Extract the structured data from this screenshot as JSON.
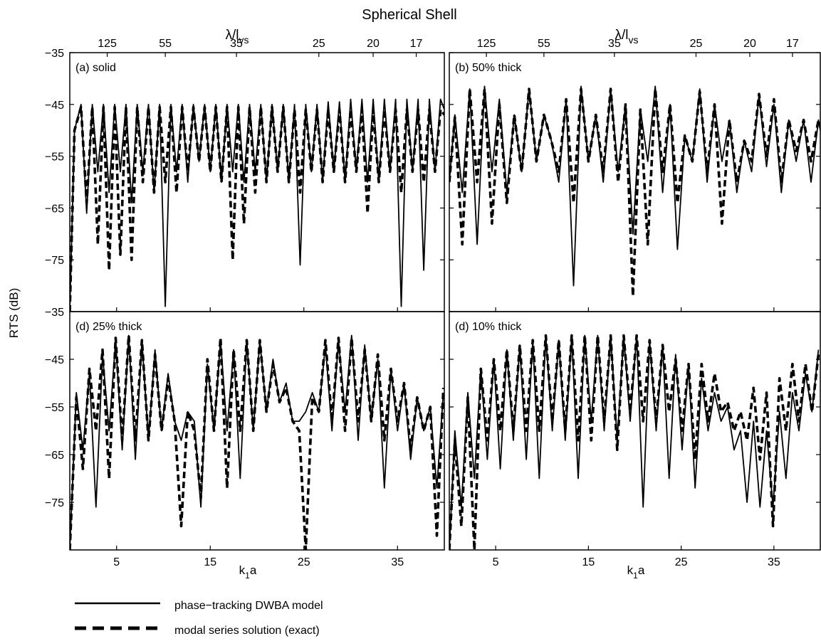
{
  "figure": {
    "title": "Spherical Shell",
    "ylabel": "RTS (dB)",
    "xlabel_main": "k",
    "xlabel_sub": "1",
    "xlabel_tail": "a",
    "toplabel_main": "λ/l",
    "toplabel_sub": "vs",
    "legend": {
      "solid": "phase−tracking DWBA model",
      "dashed": "modal series solution (exact)"
    }
  },
  "chart_data": [
    {
      "type": "line",
      "panel_label": "(a) solid",
      "x_range": [
        0,
        40
      ],
      "ylim": [
        -85,
        -35
      ],
      "yticks": [
        -35,
        -45,
        -55,
        -65,
        -75
      ],
      "xticks": [
        5,
        15,
        25,
        35
      ],
      "top_ticks": [
        "125",
        "55",
        "35",
        "25",
        "20",
        "17"
      ],
      "series": [
        {
          "name": "phase−tracking DWBA model",
          "style": "solid",
          "x": [
            0,
            0.5,
            1.2,
            1.8,
            2.4,
            3,
            3.6,
            4.2,
            4.8,
            5.4,
            6,
            6.6,
            7.2,
            7.8,
            8.4,
            9,
            9.6,
            10.2,
            10.8,
            11.4,
            12,
            12.6,
            13.2,
            13.8,
            14.4,
            15,
            15.6,
            16.2,
            16.8,
            17.4,
            18,
            18.6,
            19.2,
            19.8,
            20.4,
            21,
            21.6,
            22.2,
            22.8,
            23.4,
            24,
            24.6,
            25.2,
            25.8,
            26.4,
            27,
            27.6,
            28.2,
            28.8,
            29.4,
            30,
            30.6,
            31.2,
            31.8,
            32.4,
            33,
            33.6,
            34.2,
            34.8,
            35.4,
            36,
            36.6,
            37.2,
            37.8,
            38.4,
            39,
            39.6,
            40
          ],
          "y": [
            -85,
            -50,
            -45,
            -66,
            -45,
            -58,
            -45,
            -62,
            -45,
            -58,
            -45,
            -64,
            -45,
            -58,
            -45,
            -62,
            -45,
            -84,
            -45,
            -58,
            -45,
            -60,
            -45,
            -56,
            -45,
            -58,
            -45,
            -60,
            -45,
            -58,
            -45,
            -60,
            -45,
            -58,
            -45,
            -60,
            -45,
            -58,
            -45,
            -60,
            -45,
            -76,
            -45,
            -58,
            -45,
            -60,
            -44.5,
            -58,
            -44.5,
            -60,
            -44,
            -58,
            -44,
            -60,
            -44,
            -60,
            -44,
            -58,
            -44,
            -84,
            -44,
            -58,
            -44,
            -77,
            -44,
            -58,
            -44,
            -46
          ]
        },
        {
          "name": "modal series solution (exact)",
          "style": "dashed",
          "x": [
            0,
            0.5,
            1.2,
            1.8,
            2.4,
            3,
            3.6,
            4.2,
            4.8,
            5.4,
            6,
            6.6,
            7.2,
            7.8,
            8.4,
            9,
            9.6,
            10.2,
            10.8,
            11.4,
            12,
            12.6,
            13.2,
            13.8,
            14.4,
            15,
            15.6,
            16.2,
            16.8,
            17.4,
            18,
            18.6,
            19.2,
            19.8,
            20.4,
            21,
            21.6,
            22.2,
            22.8,
            23.4,
            24,
            24.6,
            25.2,
            25.8,
            26.4,
            27,
            27.6,
            28.2,
            28.8,
            29.4,
            30,
            30.6,
            31.2,
            31.8,
            32.4,
            33,
            33.6,
            34.2,
            34.8,
            35.4,
            36,
            36.6,
            37.2,
            37.8,
            38.4,
            39,
            39.6,
            40
          ],
          "y": [
            -85,
            -50,
            -45.5,
            -64,
            -45.5,
            -72,
            -45.5,
            -77,
            -45.5,
            -74,
            -45.5,
            -75,
            -45.5,
            -60,
            -45.5,
            -62,
            -45.5,
            -60,
            -45.5,
            -62,
            -45.5,
            -58,
            -45.5,
            -56,
            -45.5,
            -58,
            -45.5,
            -60,
            -45.5,
            -75,
            -45.5,
            -68,
            -45.5,
            -62,
            -45.5,
            -60,
            -45.5,
            -58,
            -45.5,
            -60,
            -46,
            -62,
            -46,
            -58,
            -46,
            -60,
            -46,
            -58,
            -46,
            -60,
            -46,
            -58,
            -46,
            -66,
            -46,
            -60,
            -46,
            -58,
            -46,
            -62,
            -46,
            -58,
            -46,
            -60,
            -46,
            -58,
            -46,
            -47
          ]
        }
      ]
    },
    {
      "type": "line",
      "panel_label": "(b) 50% thick",
      "x_range": [
        0,
        40
      ],
      "ylim": [
        -85,
        -35
      ],
      "yticks": [
        -35,
        -45,
        -55,
        -65,
        -75
      ],
      "xticks": [
        5,
        15,
        25,
        35
      ],
      "top_ticks": [
        "125",
        "55",
        "35",
        "25",
        "20",
        "17"
      ],
      "series": [
        {
          "name": "phase−tracking DWBA model",
          "style": "solid",
          "x": [
            0,
            0.6,
            1.4,
            2.2,
            3,
            3.8,
            4.6,
            5.4,
            6.2,
            7,
            7.8,
            8.6,
            9.4,
            10.2,
            11,
            11.8,
            12.6,
            13.4,
            14.2,
            15,
            15.8,
            16.6,
            17.4,
            18.2,
            19,
            19.8,
            20.6,
            21.4,
            22.2,
            23,
            23.8,
            24.6,
            25.4,
            26.2,
            27,
            27.8,
            28.6,
            29.4,
            30.2,
            31,
            31.8,
            32.6,
            33.4,
            34.2,
            35,
            35.8,
            36.6,
            37.4,
            38.2,
            39,
            39.8,
            40
          ],
          "y": [
            -60,
            -47,
            -62,
            -42,
            -72,
            -41.5,
            -58,
            -44,
            -62,
            -47,
            -58,
            -42,
            -56,
            -47,
            -52,
            -60,
            -44,
            -80,
            -41.5,
            -56,
            -47,
            -60,
            -42,
            -58,
            -45,
            -70,
            -46,
            -56,
            -41.5,
            -62,
            -45,
            -73,
            -51,
            -56,
            -42,
            -60,
            -45,
            -56,
            -48,
            -62,
            -52,
            -58,
            -43,
            -57,
            -45,
            -62,
            -48,
            -56,
            -48,
            -60,
            -48,
            -50
          ]
        },
        {
          "name": "modal series solution (exact)",
          "style": "dashed",
          "x": [
            0,
            0.6,
            1.4,
            2.2,
            3,
            3.8,
            4.6,
            5.4,
            6.2,
            7,
            7.8,
            8.6,
            9.4,
            10.2,
            11,
            11.8,
            12.6,
            13.4,
            14.2,
            15,
            15.8,
            16.6,
            17.4,
            18.2,
            19,
            19.8,
            20.6,
            21.4,
            22.2,
            23,
            23.8,
            24.6,
            25.4,
            26.2,
            27,
            27.8,
            28.6,
            29.4,
            30.2,
            31,
            31.8,
            32.6,
            33.4,
            34.2,
            35,
            35.8,
            36.6,
            37.4,
            38.2,
            39,
            39.8,
            40
          ],
          "y": [
            -60,
            -47.5,
            -72,
            -42,
            -60,
            -42,
            -68,
            -45,
            -64,
            -47,
            -58,
            -42,
            -56,
            -47,
            -52,
            -58,
            -44,
            -64,
            -42,
            -56,
            -47,
            -58,
            -42,
            -60,
            -45,
            -82,
            -46,
            -72,
            -42,
            -58,
            -45,
            -64,
            -51,
            -56,
            -42.5,
            -58,
            -45,
            -68,
            -48,
            -60,
            -52,
            -56,
            -43,
            -55,
            -44,
            -60,
            -48,
            -54,
            -48,
            -56,
            -48,
            -49
          ]
        }
      ]
    },
    {
      "type": "line",
      "panel_label": "(d) 25% thick",
      "x_range": [
        0,
        40
      ],
      "ylim": [
        -85,
        -35
      ],
      "yticks": [
        -35,
        -45,
        -55,
        -65,
        -75
      ],
      "xticks": [
        5,
        15,
        25,
        35
      ],
      "top_ticks": [],
      "series": [
        {
          "name": "phase−tracking DWBA model",
          "style": "solid",
          "x": [
            0,
            0.7,
            1.4,
            2.1,
            2.8,
            3.5,
            4.2,
            4.9,
            5.6,
            6.3,
            7,
            7.7,
            8.4,
            9.1,
            9.8,
            10.5,
            11.2,
            11.9,
            12.6,
            13.3,
            14,
            14.7,
            15.4,
            16.1,
            16.8,
            17.5,
            18.2,
            18.9,
            19.6,
            20.3,
            21,
            21.7,
            22.4,
            23.1,
            23.8,
            24.5,
            25.2,
            25.9,
            26.6,
            27.3,
            28,
            28.7,
            29.4,
            30.1,
            30.8,
            31.5,
            32.2,
            32.9,
            33.6,
            34.3,
            35,
            35.7,
            36.4,
            37.1,
            37.8,
            38.5,
            39.2,
            39.9
          ],
          "y": [
            -85,
            -52,
            -64,
            -48,
            -76,
            -44,
            -60,
            -41,
            -64,
            -40,
            -66,
            -41,
            -62,
            -43,
            -60,
            -48,
            -58,
            -62,
            -56,
            -58,
            -76,
            -46,
            -60,
            -41,
            -60,
            -43,
            -70,
            -41,
            -60,
            -41,
            -56,
            -45,
            -54,
            -50,
            -58,
            -58,
            -56,
            -52,
            -56,
            -42,
            -60,
            -41,
            -56,
            -40,
            -62,
            -42,
            -58,
            -45,
            -72,
            -47,
            -60,
            -50,
            -66,
            -53,
            -60,
            -55,
            -72,
            -52
          ]
        },
        {
          "name": "modal series solution (exact)",
          "style": "dashed",
          "x": [
            0,
            0.7,
            1.4,
            2.1,
            2.8,
            3.5,
            4.2,
            4.9,
            5.6,
            6.3,
            7,
            7.7,
            8.4,
            9.1,
            9.8,
            10.5,
            11.2,
            11.9,
            12.6,
            13.3,
            14,
            14.7,
            15.4,
            16.1,
            16.8,
            17.5,
            18.2,
            18.9,
            19.6,
            20.3,
            21,
            21.7,
            22.4,
            23.1,
            23.8,
            24.5,
            25.2,
            25.9,
            26.6,
            27.3,
            28,
            28.7,
            29.4,
            30.1,
            30.8,
            31.5,
            32.2,
            32.9,
            33.6,
            34.3,
            35,
            35.7,
            36.4,
            37.1,
            37.8,
            38.5,
            39.2,
            39.9
          ],
          "y": [
            -85,
            -53,
            -68,
            -47,
            -60,
            -43,
            -70,
            -40.5,
            -62,
            -40,
            -62,
            -41,
            -62,
            -44,
            -60,
            -49,
            -58,
            -80,
            -56,
            -60,
            -74,
            -45,
            -60,
            -40.5,
            -72,
            -43,
            -60,
            -41,
            -60,
            -41,
            -56,
            -46,
            -54,
            -51,
            -58,
            -60,
            -85,
            -53,
            -56,
            -41,
            -58,
            -40.5,
            -60,
            -40.5,
            -58,
            -43,
            -58,
            -44,
            -62,
            -47,
            -58,
            -50,
            -64,
            -53,
            -60,
            -55,
            -82,
            -51
          ]
        }
      ]
    },
    {
      "type": "line",
      "panel_label": "(d) 10% thick",
      "x_range": [
        0,
        40
      ],
      "ylim": [
        -85,
        -35
      ],
      "yticks": [
        -35,
        -45,
        -55,
        -65,
        -75
      ],
      "xticks": [
        5,
        15,
        25,
        35
      ],
      "top_ticks": [],
      "series": [
        {
          "name": "phase−tracking DWBA model",
          "style": "solid",
          "x": [
            0,
            0.6,
            1.3,
            2,
            2.7,
            3.4,
            4.1,
            4.8,
            5.5,
            6.2,
            6.9,
            7.6,
            8.3,
            9,
            9.7,
            10.4,
            11.1,
            11.8,
            12.5,
            13.2,
            13.9,
            14.6,
            15.3,
            16,
            16.7,
            17.4,
            18.1,
            18.8,
            19.5,
            20.2,
            20.9,
            21.6,
            22.3,
            23,
            23.7,
            24.4,
            25.1,
            25.8,
            26.5,
            27.2,
            27.9,
            28.6,
            29.3,
            30,
            30.7,
            31.4,
            32.1,
            32.8,
            33.5,
            34.2,
            34.9,
            35.6,
            36.3,
            37,
            37.7,
            38.4,
            39.1,
            39.8
          ],
          "y": [
            -85,
            -60,
            -76,
            -52,
            -70,
            -47,
            -66,
            -45,
            -68,
            -43,
            -62,
            -42,
            -66,
            -41,
            -70,
            -40,
            -60,
            -41,
            -62,
            -40,
            -70,
            -40,
            -58,
            -40,
            -60,
            -40,
            -62,
            -40,
            -58,
            -40,
            -76,
            -41,
            -60,
            -42,
            -70,
            -44,
            -64,
            -46,
            -72,
            -49,
            -60,
            -52,
            -58,
            -55,
            -64,
            -60,
            -75,
            -58,
            -76,
            -60,
            -76,
            -56,
            -70,
            -52,
            -60,
            -48,
            -56,
            -43
          ]
        },
        {
          "name": "modal series solution (exact)",
          "style": "dashed",
          "x": [
            0,
            0.6,
            1.3,
            2,
            2.7,
            3.4,
            4.1,
            4.8,
            5.5,
            6.2,
            6.9,
            7.6,
            8.3,
            9,
            9.7,
            10.4,
            11.1,
            11.8,
            12.5,
            13.2,
            13.9,
            14.6,
            15.3,
            16,
            16.7,
            17.4,
            18.1,
            18.8,
            19.5,
            20.2,
            20.9,
            21.6,
            22.3,
            23,
            23.7,
            24.4,
            25.1,
            25.8,
            26.5,
            27.2,
            27.9,
            28.6,
            29.3,
            30,
            30.7,
            31.4,
            32.1,
            32.8,
            33.5,
            34.2,
            34.9,
            35.6,
            36.3,
            37,
            37.7,
            38.4,
            39.1,
            39.8
          ],
          "y": [
            -85,
            -62,
            -80,
            -53,
            -85,
            -47,
            -62,
            -45,
            -60,
            -43,
            -60,
            -42,
            -60,
            -41,
            -60,
            -40,
            -58,
            -41,
            -60,
            -40,
            -62,
            -40,
            -62,
            -40,
            -58,
            -40,
            -64,
            -40,
            -56,
            -40,
            -58,
            -41,
            -58,
            -42,
            -56,
            -45,
            -60,
            -46,
            -66,
            -46,
            -58,
            -48,
            -56,
            -54,
            -60,
            -56,
            -62,
            -51,
            -66,
            -52,
            -80,
            -49,
            -60,
            -46,
            -58,
            -46,
            -56,
            -44
          ]
        }
      ]
    }
  ]
}
